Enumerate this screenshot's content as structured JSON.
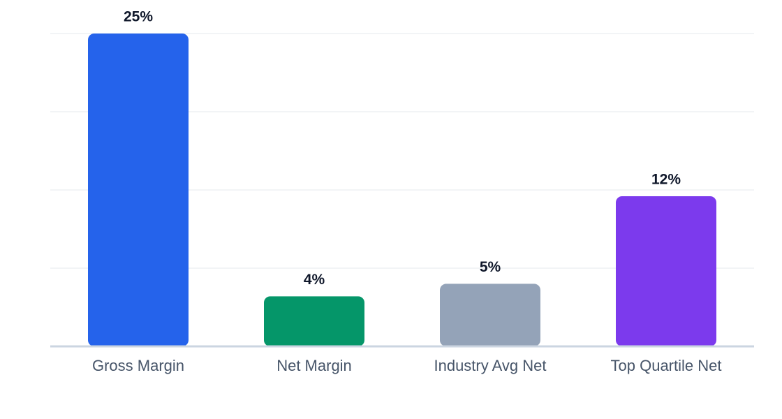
{
  "chart_data": {
    "type": "bar",
    "categories": [
      "Gross Margin",
      "Net Margin",
      "Industry Avg Net",
      "Top Quartile Net"
    ],
    "values": [
      25,
      4,
      5,
      12
    ],
    "value_labels": [
      "25%",
      "4%",
      "5%",
      "12%"
    ],
    "colors": [
      "#2563eb",
      "#059669",
      "#94a3b8",
      "#7c3aed"
    ],
    "ylim": [
      0,
      25
    ],
    "yticks": [
      0,
      6.25,
      12.5,
      18.75,
      25
    ],
    "grid": true
  }
}
